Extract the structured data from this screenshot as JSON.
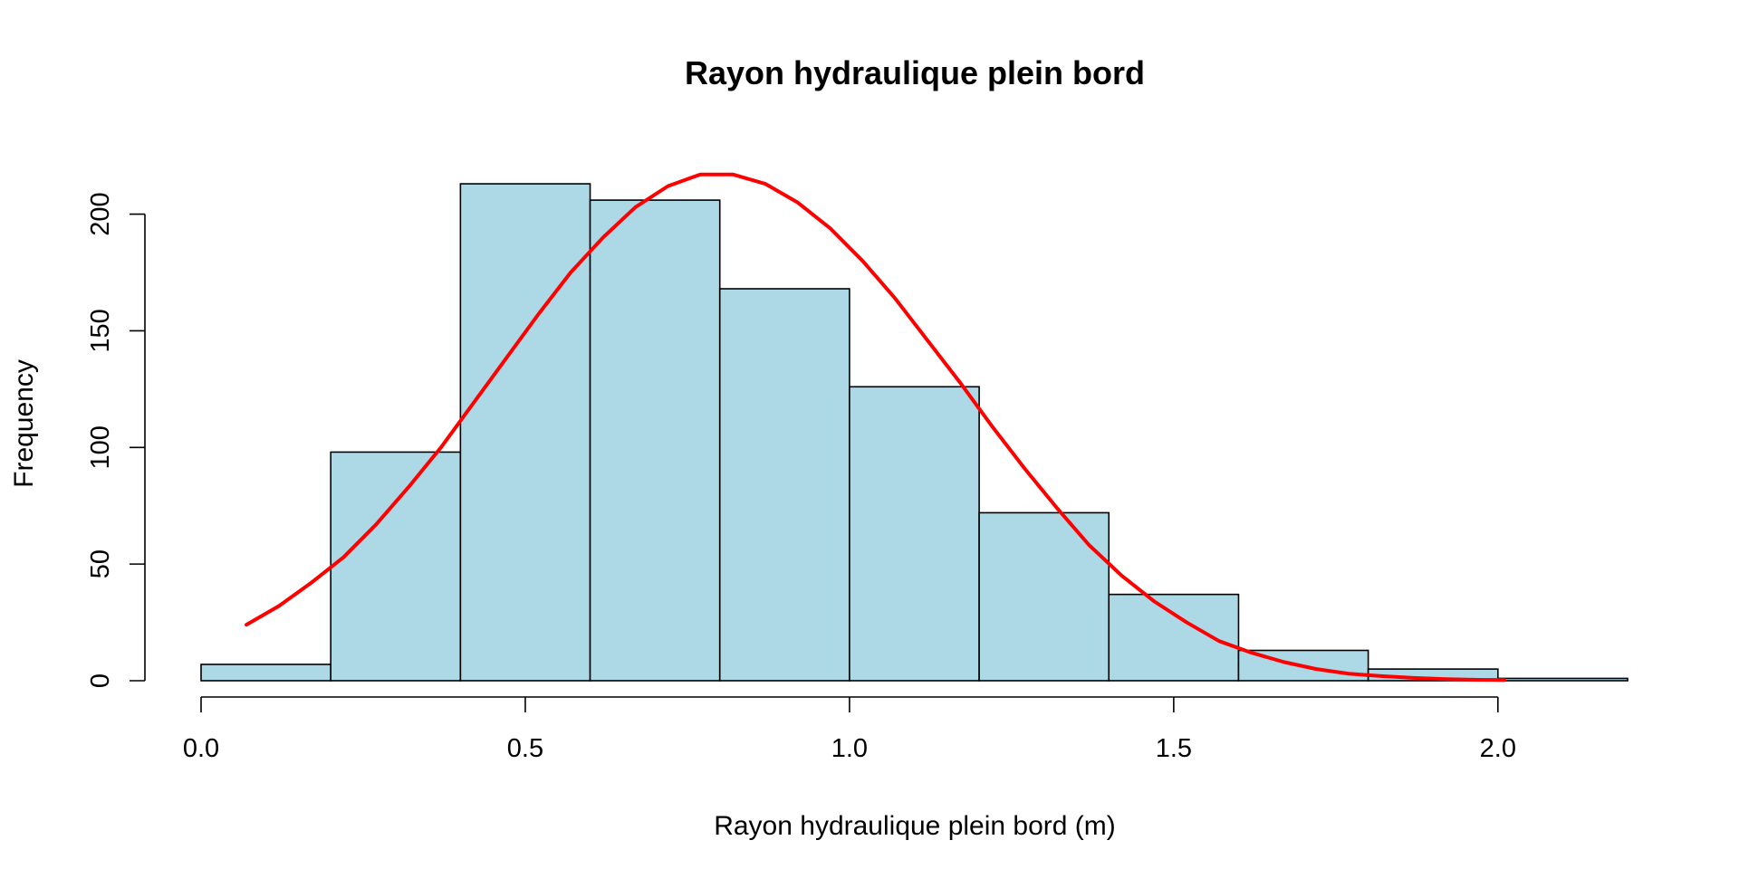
{
  "chart_data": {
    "type": "bar",
    "title": "Rayon hydraulique plein bord",
    "xlabel": "Rayon hydraulique plein bord (m)",
    "ylabel": "Frequency",
    "xlim": [
      0.0,
      2.2
    ],
    "ylim": [
      0,
      220
    ],
    "x_ticks": [
      0.0,
      0.5,
      1.0,
      1.5,
      2.0
    ],
    "x_tick_labels": [
      "0.0",
      "0.5",
      "1.0",
      "1.5",
      "2.0"
    ],
    "y_ticks": [
      0,
      50,
      100,
      150,
      200
    ],
    "y_tick_labels": [
      "0",
      "50",
      "100",
      "150",
      "200"
    ],
    "bins": [
      {
        "start": 0.0,
        "end": 0.2,
        "value": 7
      },
      {
        "start": 0.2,
        "end": 0.4,
        "value": 98
      },
      {
        "start": 0.4,
        "end": 0.6,
        "value": 213
      },
      {
        "start": 0.6,
        "end": 0.8,
        "value": 206
      },
      {
        "start": 0.8,
        "end": 1.0,
        "value": 168
      },
      {
        "start": 1.0,
        "end": 1.2,
        "value": 126
      },
      {
        "start": 1.2,
        "end": 1.4,
        "value": 72
      },
      {
        "start": 1.4,
        "end": 1.6,
        "value": 37
      },
      {
        "start": 1.6,
        "end": 1.8,
        "value": 13
      },
      {
        "start": 1.8,
        "end": 2.0,
        "value": 5
      },
      {
        "start": 2.0,
        "end": 2.2,
        "value": 1
      }
    ],
    "curve": {
      "x": [
        0.07,
        0.12,
        0.17,
        0.22,
        0.27,
        0.32,
        0.37,
        0.42,
        0.47,
        0.52,
        0.57,
        0.62,
        0.67,
        0.72,
        0.77,
        0.82,
        0.87,
        0.92,
        0.97,
        1.02,
        1.07,
        1.12,
        1.17,
        1.22,
        1.27,
        1.32,
        1.37,
        1.42,
        1.47,
        1.52,
        1.57,
        1.62,
        1.67,
        1.72,
        1.77,
        1.82,
        1.87,
        1.92,
        1.97,
        2.01
      ],
      "y": [
        24,
        32,
        42,
        53,
        67,
        83,
        100,
        119,
        138,
        157,
        175,
        190,
        203,
        212,
        217,
        217,
        213,
        205,
        194,
        180,
        164,
        146,
        128,
        109,
        91,
        74,
        58,
        45,
        34,
        25,
        17,
        12,
        8,
        5,
        3,
        2,
        1.2,
        0.7,
        0.4,
        0.3
      ]
    },
    "colors": {
      "bar_fill": "#add8e6",
      "bar_stroke": "#000000",
      "curve": "#ff0000"
    },
    "grid": false
  }
}
